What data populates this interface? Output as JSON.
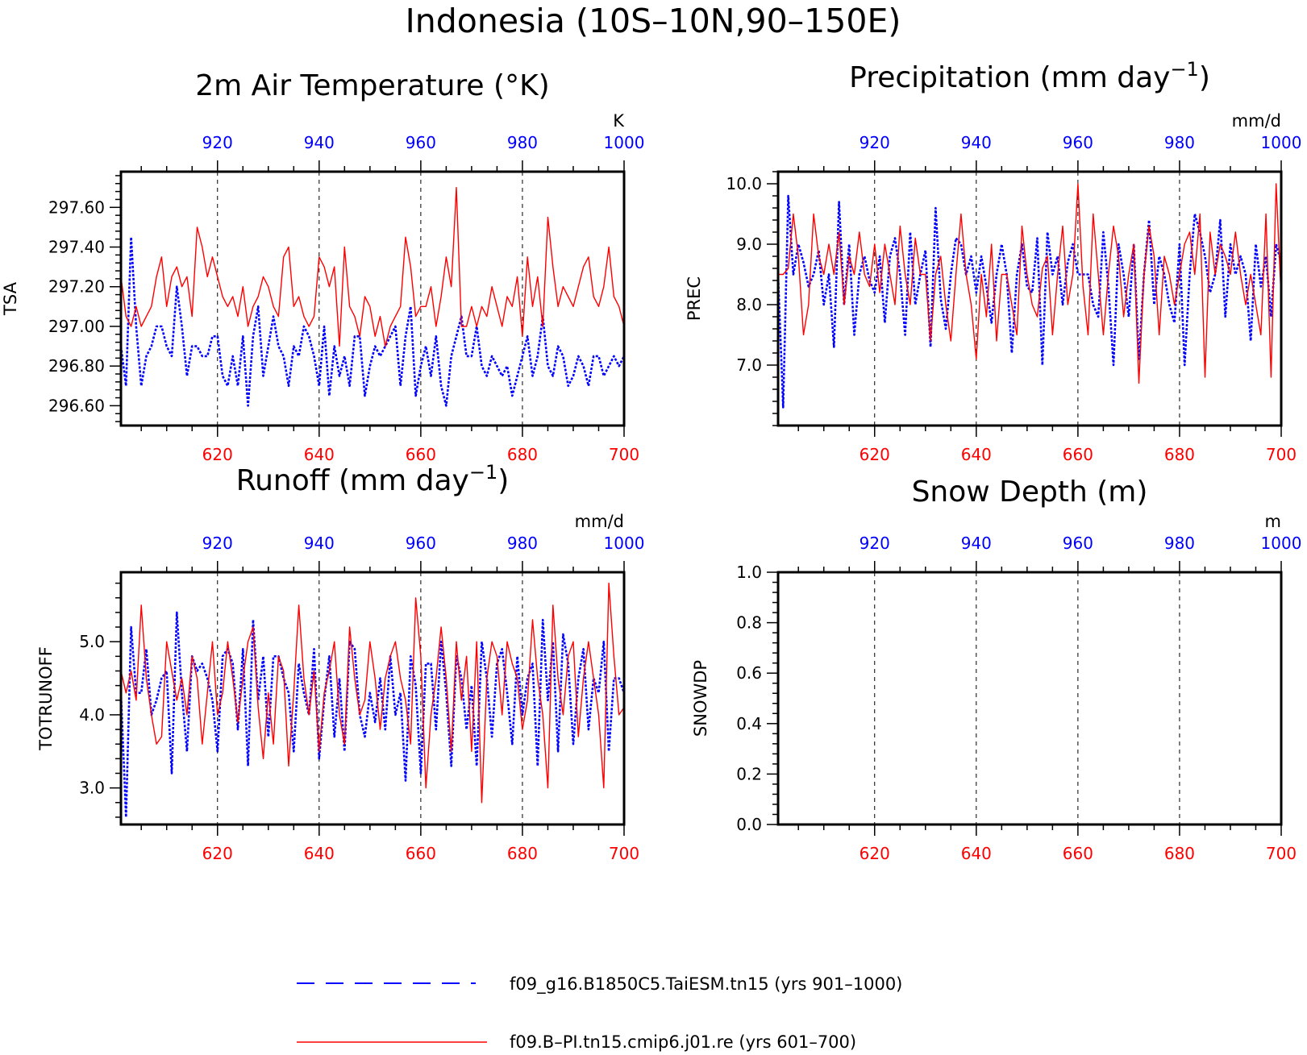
{
  "title": "Indonesia (10S–10N,90–150E)",
  "colors": {
    "series_a": "#0000ff",
    "series_b": "#ff0000",
    "axes": "#000000"
  },
  "legend": [
    {
      "label": "f09_g16.B1850C5.TaiESM.tn15 (yrs 901–1000)",
      "color": "#0000ff",
      "style": "dashed"
    },
    {
      "label": "f09.B–PI.tn15.cmip6.j01.re (yrs 601–700)",
      "color": "#ff0000",
      "style": "solid"
    }
  ],
  "chart_data": [
    {
      "type": "line",
      "title": "2m Air Temperature (°K)",
      "ylabel": "TSA",
      "unit": "K",
      "x_bottom": {
        "range": [
          601,
          700
        ],
        "ticks": [
          "620",
          "640",
          "660",
          "680",
          "700"
        ]
      },
      "x_top": {
        "range": [
          901,
          1000
        ],
        "ticks": [
          "920",
          "940",
          "960",
          "980",
          "1000"
        ]
      },
      "ylim": [
        296.5,
        297.78
      ],
      "yticks": [
        "296.60",
        "296.80",
        "297.00",
        "297.20",
        "297.40",
        "297.60"
      ],
      "grid": "vertical dashed at x ticks",
      "series": [
        {
          "name": "f09.B–PI.tn15.cmip6.j01.re (yrs 601–700)",
          "color": "#ff0000",
          "axis": "bottom",
          "values": [
            297.25,
            297.05,
            297.0,
            297.1,
            297.0,
            297.05,
            297.1,
            297.25,
            297.35,
            297.1,
            297.25,
            297.3,
            297.2,
            297.25,
            297.05,
            297.5,
            297.4,
            297.25,
            297.35,
            297.25,
            297.15,
            297.1,
            297.15,
            297.05,
            297.2,
            297.0,
            297.1,
            297.15,
            297.25,
            297.2,
            297.1,
            297.05,
            297.35,
            297.4,
            297.1,
            297.15,
            297.05,
            297.0,
            297.05,
            297.35,
            297.3,
            297.2,
            297.3,
            296.9,
            297.4,
            297.1,
            297.05,
            296.95,
            297.15,
            297.1,
            296.95,
            297.05,
            296.9,
            297.0,
            297.05,
            297.1,
            297.45,
            297.3,
            297.05,
            297.1,
            297.1,
            297.2,
            297.0,
            297.15,
            297.35,
            297.2,
            297.7,
            297.0,
            297.0,
            297.1,
            297.0,
            297.1,
            297.05,
            297.2,
            297.1,
            297.0,
            297.15,
            297.1,
            297.25,
            296.95,
            297.35,
            297.1,
            297.25,
            297.0,
            297.55,
            297.3,
            297.1,
            297.2,
            297.15,
            297.1,
            297.2,
            297.3,
            297.35,
            297.15,
            297.1,
            297.2,
            297.4,
            297.15,
            297.1,
            297.0
          ]
        },
        {
          "name": "f09_g16.B1850C5.TaiESM.tn15 (yrs 901–1000)",
          "color": "#0000ff",
          "axis": "top",
          "values": [
            296.9,
            296.7,
            297.45,
            297.0,
            296.7,
            296.85,
            296.9,
            297.0,
            297.0,
            296.9,
            296.85,
            297.2,
            297.0,
            296.75,
            296.9,
            296.9,
            296.85,
            296.85,
            296.95,
            296.95,
            296.75,
            296.7,
            296.85,
            296.7,
            296.95,
            296.6,
            296.95,
            297.1,
            296.75,
            296.9,
            297.05,
            296.9,
            296.85,
            296.7,
            296.9,
            296.85,
            297.0,
            296.95,
            296.85,
            296.7,
            297.0,
            296.65,
            296.9,
            296.75,
            296.85,
            296.7,
            296.95,
            296.95,
            296.65,
            296.8,
            296.9,
            296.85,
            296.9,
            296.95,
            297.0,
            296.7,
            296.95,
            297.1,
            296.65,
            296.8,
            296.9,
            296.75,
            296.95,
            296.7,
            296.6,
            296.85,
            296.95,
            297.05,
            296.85,
            296.85,
            297.0,
            296.8,
            296.75,
            296.85,
            296.8,
            296.75,
            296.8,
            296.65,
            296.75,
            296.85,
            296.95,
            296.75,
            296.85,
            297.05,
            296.8,
            296.75,
            296.9,
            296.85,
            296.7,
            296.75,
            296.85,
            296.8,
            296.7,
            296.85,
            296.85,
            296.75,
            296.8,
            296.85,
            296.8,
            296.85
          ]
        }
      ]
    },
    {
      "type": "line",
      "title": "Precipitation (mm day",
      "title_sup": "−1",
      "title_end": ")",
      "ylabel": "PREC",
      "unit": "mm/d",
      "x_bottom": {
        "range": [
          601,
          700
        ],
        "ticks": [
          "620",
          "640",
          "660",
          "680",
          "700"
        ]
      },
      "x_top": {
        "range": [
          901,
          1000
        ],
        "ticks": [
          "920",
          "940",
          "960",
          "980",
          "1000"
        ]
      },
      "ylim": [
        6.0,
        10.2
      ],
      "yticks": [
        "7.0",
        "8.0",
        "9.0",
        "10.0"
      ],
      "grid": "vertical dashed at x ticks",
      "series": [
        {
          "name": "f09.B–PI.tn15.cmip6.j01.re (yrs 601–700)",
          "color": "#ff0000",
          "axis": "bottom",
          "values": [
            8.5,
            8.5,
            8.6,
            9.5,
            8.8,
            7.5,
            8.0,
            9.5,
            8.8,
            8.5,
            9.0,
            8.5,
            9.2,
            8.0,
            8.8,
            8.5,
            9.2,
            8.5,
            8.3,
            9.0,
            8.2,
            9.0,
            8.5,
            8.0,
            9.3,
            8.5,
            8.0,
            9.1,
            8.5,
            8.5,
            7.4,
            8.5,
            8.8,
            8.0,
            7.4,
            8.5,
            9.5,
            8.5,
            8.0,
            7.1,
            8.5,
            7.8,
            9.0,
            7.4,
            8.5,
            8.5,
            8.0,
            7.5,
            9.3,
            8.5,
            8.0,
            7.8,
            8.6,
            8.8,
            7.5,
            8.5,
            9.3,
            8.0,
            8.5,
            10.0,
            8.3,
            7.5,
            9.5,
            8.5,
            7.5,
            8.5,
            9.3,
            8.8,
            7.8,
            8.5,
            9.0,
            6.7,
            8.5,
            9.3,
            8.8,
            7.5,
            8.8,
            8.5,
            8.0,
            8.5,
            9.0,
            9.2,
            8.5,
            9.5,
            6.8,
            9.2,
            8.5,
            9.0,
            8.8,
            8.5,
            9.2,
            8.5,
            8.0,
            8.5,
            8.0,
            7.5,
            9.5,
            6.8,
            10.0,
            8.1
          ]
        },
        {
          "name": "f09_g16.B1850C5.TaiESM.tn15 (yrs 901–1000)",
          "color": "#0000ff",
          "axis": "top",
          "values": [
            8.5,
            6.3,
            9.8,
            8.5,
            9.0,
            8.7,
            8.3,
            8.5,
            8.9,
            8.0,
            8.5,
            7.3,
            9.7,
            8.0,
            9.0,
            7.5,
            8.5,
            8.8,
            8.4,
            8.2,
            8.8,
            7.7,
            8.8,
            9.1,
            8.5,
            7.5,
            9.2,
            8.0,
            8.5,
            8.9,
            7.3,
            9.6,
            8.1,
            7.6,
            8.5,
            9.1,
            9.0,
            8.5,
            8.8,
            8.2,
            8.8,
            8.3,
            7.7,
            8.5,
            9.0,
            8.5,
            7.2,
            8.5,
            9.0,
            8.3,
            8.2,
            9.1,
            7.0,
            9.2,
            8.5,
            8.8,
            8.0,
            8.7,
            9.0,
            8.5,
            8.5,
            8.5,
            8.0,
            7.8,
            9.2,
            8.3,
            7.0,
            9.0,
            8.5,
            7.8,
            9.0,
            7.1,
            8.5,
            9.4,
            8.0,
            8.8,
            8.5,
            8.0,
            7.7,
            9.0,
            7.0,
            8.5,
            9.5,
            9.2,
            8.8,
            8.2,
            8.5,
            9.4,
            7.8,
            9.0,
            8.5,
            8.8,
            8.5,
            7.4,
            9.0,
            8.3,
            8.8,
            7.8,
            9.0,
            8.7
          ]
        }
      ]
    },
    {
      "type": "line",
      "title": "Runoff (mm day",
      "title_sup": "−1",
      "title_end": ")",
      "ylabel": "TOTRUNOFF",
      "unit": "mm/d",
      "x_bottom": {
        "range": [
          601,
          700
        ],
        "ticks": [
          "620",
          "640",
          "660",
          "680",
          "700"
        ]
      },
      "x_top": {
        "range": [
          901,
          1000
        ],
        "ticks": [
          "920",
          "940",
          "960",
          "980",
          "1000"
        ]
      },
      "ylim": [
        2.5,
        5.95
      ],
      "yticks": [
        "3.0",
        "4.0",
        "5.0"
      ],
      "grid": "vertical dashed at x ticks",
      "series": [
        {
          "name": "f09.B–PI.tn15.cmip6.j01.re (yrs 601–700)",
          "color": "#ff0000",
          "axis": "bottom",
          "values": [
            4.6,
            4.3,
            4.6,
            4.2,
            5.5,
            4.5,
            4.0,
            3.6,
            3.7,
            5.0,
            4.6,
            4.2,
            4.5,
            4.0,
            4.8,
            4.5,
            3.6,
            4.3,
            5.0,
            4.0,
            4.3,
            5.0,
            4.5,
            3.9,
            4.5,
            5.0,
            5.2,
            4.1,
            3.4,
            4.3,
            3.6,
            4.8,
            4.6,
            3.3,
            4.3,
            5.5,
            4.5,
            4.0,
            4.6,
            3.5,
            4.3,
            4.6,
            5.0,
            4.0,
            3.6,
            5.2,
            4.5,
            4.0,
            4.2,
            5.0,
            4.5,
            3.8,
            4.5,
            4.8,
            5.0,
            4.5,
            4.2,
            3.6,
            5.6,
            4.8,
            3.0,
            4.0,
            4.5,
            5.2,
            4.5,
            3.5,
            5.0,
            4.2,
            4.8,
            3.5,
            5.0,
            2.8,
            4.5,
            5.0,
            4.8,
            4.0,
            5.0,
            4.7,
            4.5,
            3.8,
            4.2,
            5.3,
            4.5,
            4.0,
            3.0,
            5.5,
            4.5,
            4.0,
            4.8,
            5.0,
            3.7,
            4.5,
            5.0,
            4.5,
            4.0,
            3.0,
            5.8,
            4.8,
            4.0,
            4.1
          ]
        },
        {
          "name": "f09_g16.B1850C5.TaiESM.tn15 (yrs 901–1000)",
          "color": "#0000ff",
          "axis": "top",
          "values": [
            4.3,
            2.6,
            5.2,
            4.3,
            4.3,
            4.9,
            4.0,
            4.2,
            4.5,
            4.6,
            3.2,
            5.4,
            4.3,
            3.5,
            4.8,
            4.6,
            4.7,
            4.5,
            4.2,
            3.5,
            4.8,
            4.9,
            4.7,
            3.8,
            4.9,
            3.3,
            5.3,
            4.2,
            4.8,
            3.7,
            4.8,
            4.8,
            4.5,
            4.3,
            3.5,
            4.7,
            4.3,
            4.0,
            4.9,
            3.4,
            4.2,
            4.8,
            3.7,
            4.5,
            3.5,
            5.0,
            4.9,
            4.0,
            3.7,
            4.3,
            3.9,
            4.5,
            3.8,
            4.8,
            4.0,
            4.3,
            3.1,
            4.8,
            4.4,
            3.2,
            4.7,
            4.7,
            3.8,
            5.0,
            4.3,
            3.3,
            4.8,
            4.5,
            3.8,
            4.4,
            3.3,
            5.0,
            4.5,
            3.7,
            4.7,
            4.9,
            4.3,
            3.6,
            4.8,
            4.0,
            4.5,
            4.7,
            3.3,
            5.3,
            4.2,
            5.0,
            3.5,
            5.1,
            4.7,
            3.6,
            4.5,
            4.9,
            3.8,
            4.5,
            4.3,
            5.0,
            3.5,
            4.5,
            4.5,
            4.3
          ]
        }
      ]
    },
    {
      "type": "line",
      "title": "Snow Depth (m)",
      "ylabel": "SNOWDP",
      "unit": "m",
      "x_bottom": {
        "range": [
          601,
          700
        ],
        "ticks": [
          "620",
          "640",
          "660",
          "680",
          "700"
        ]
      },
      "x_top": {
        "range": [
          901,
          1000
        ],
        "ticks": [
          "920",
          "940",
          "960",
          "980",
          "1000"
        ]
      },
      "ylim": [
        0.0,
        1.0
      ],
      "yticks": [
        "0.0",
        "0.2",
        "0.4",
        "0.6",
        "0.8",
        "1.0"
      ],
      "grid": "vertical dashed at x ticks",
      "series": [
        {
          "name": "f09.B–PI.tn15.cmip6.j01.re (yrs 601–700)",
          "color": "#ff0000",
          "axis": "bottom",
          "constant": 0.0
        },
        {
          "name": "f09_g16.B1850C5.TaiESM.tn15 (yrs 901–1000)",
          "color": "#0000ff",
          "axis": "top",
          "constant": 0.0
        }
      ]
    }
  ]
}
